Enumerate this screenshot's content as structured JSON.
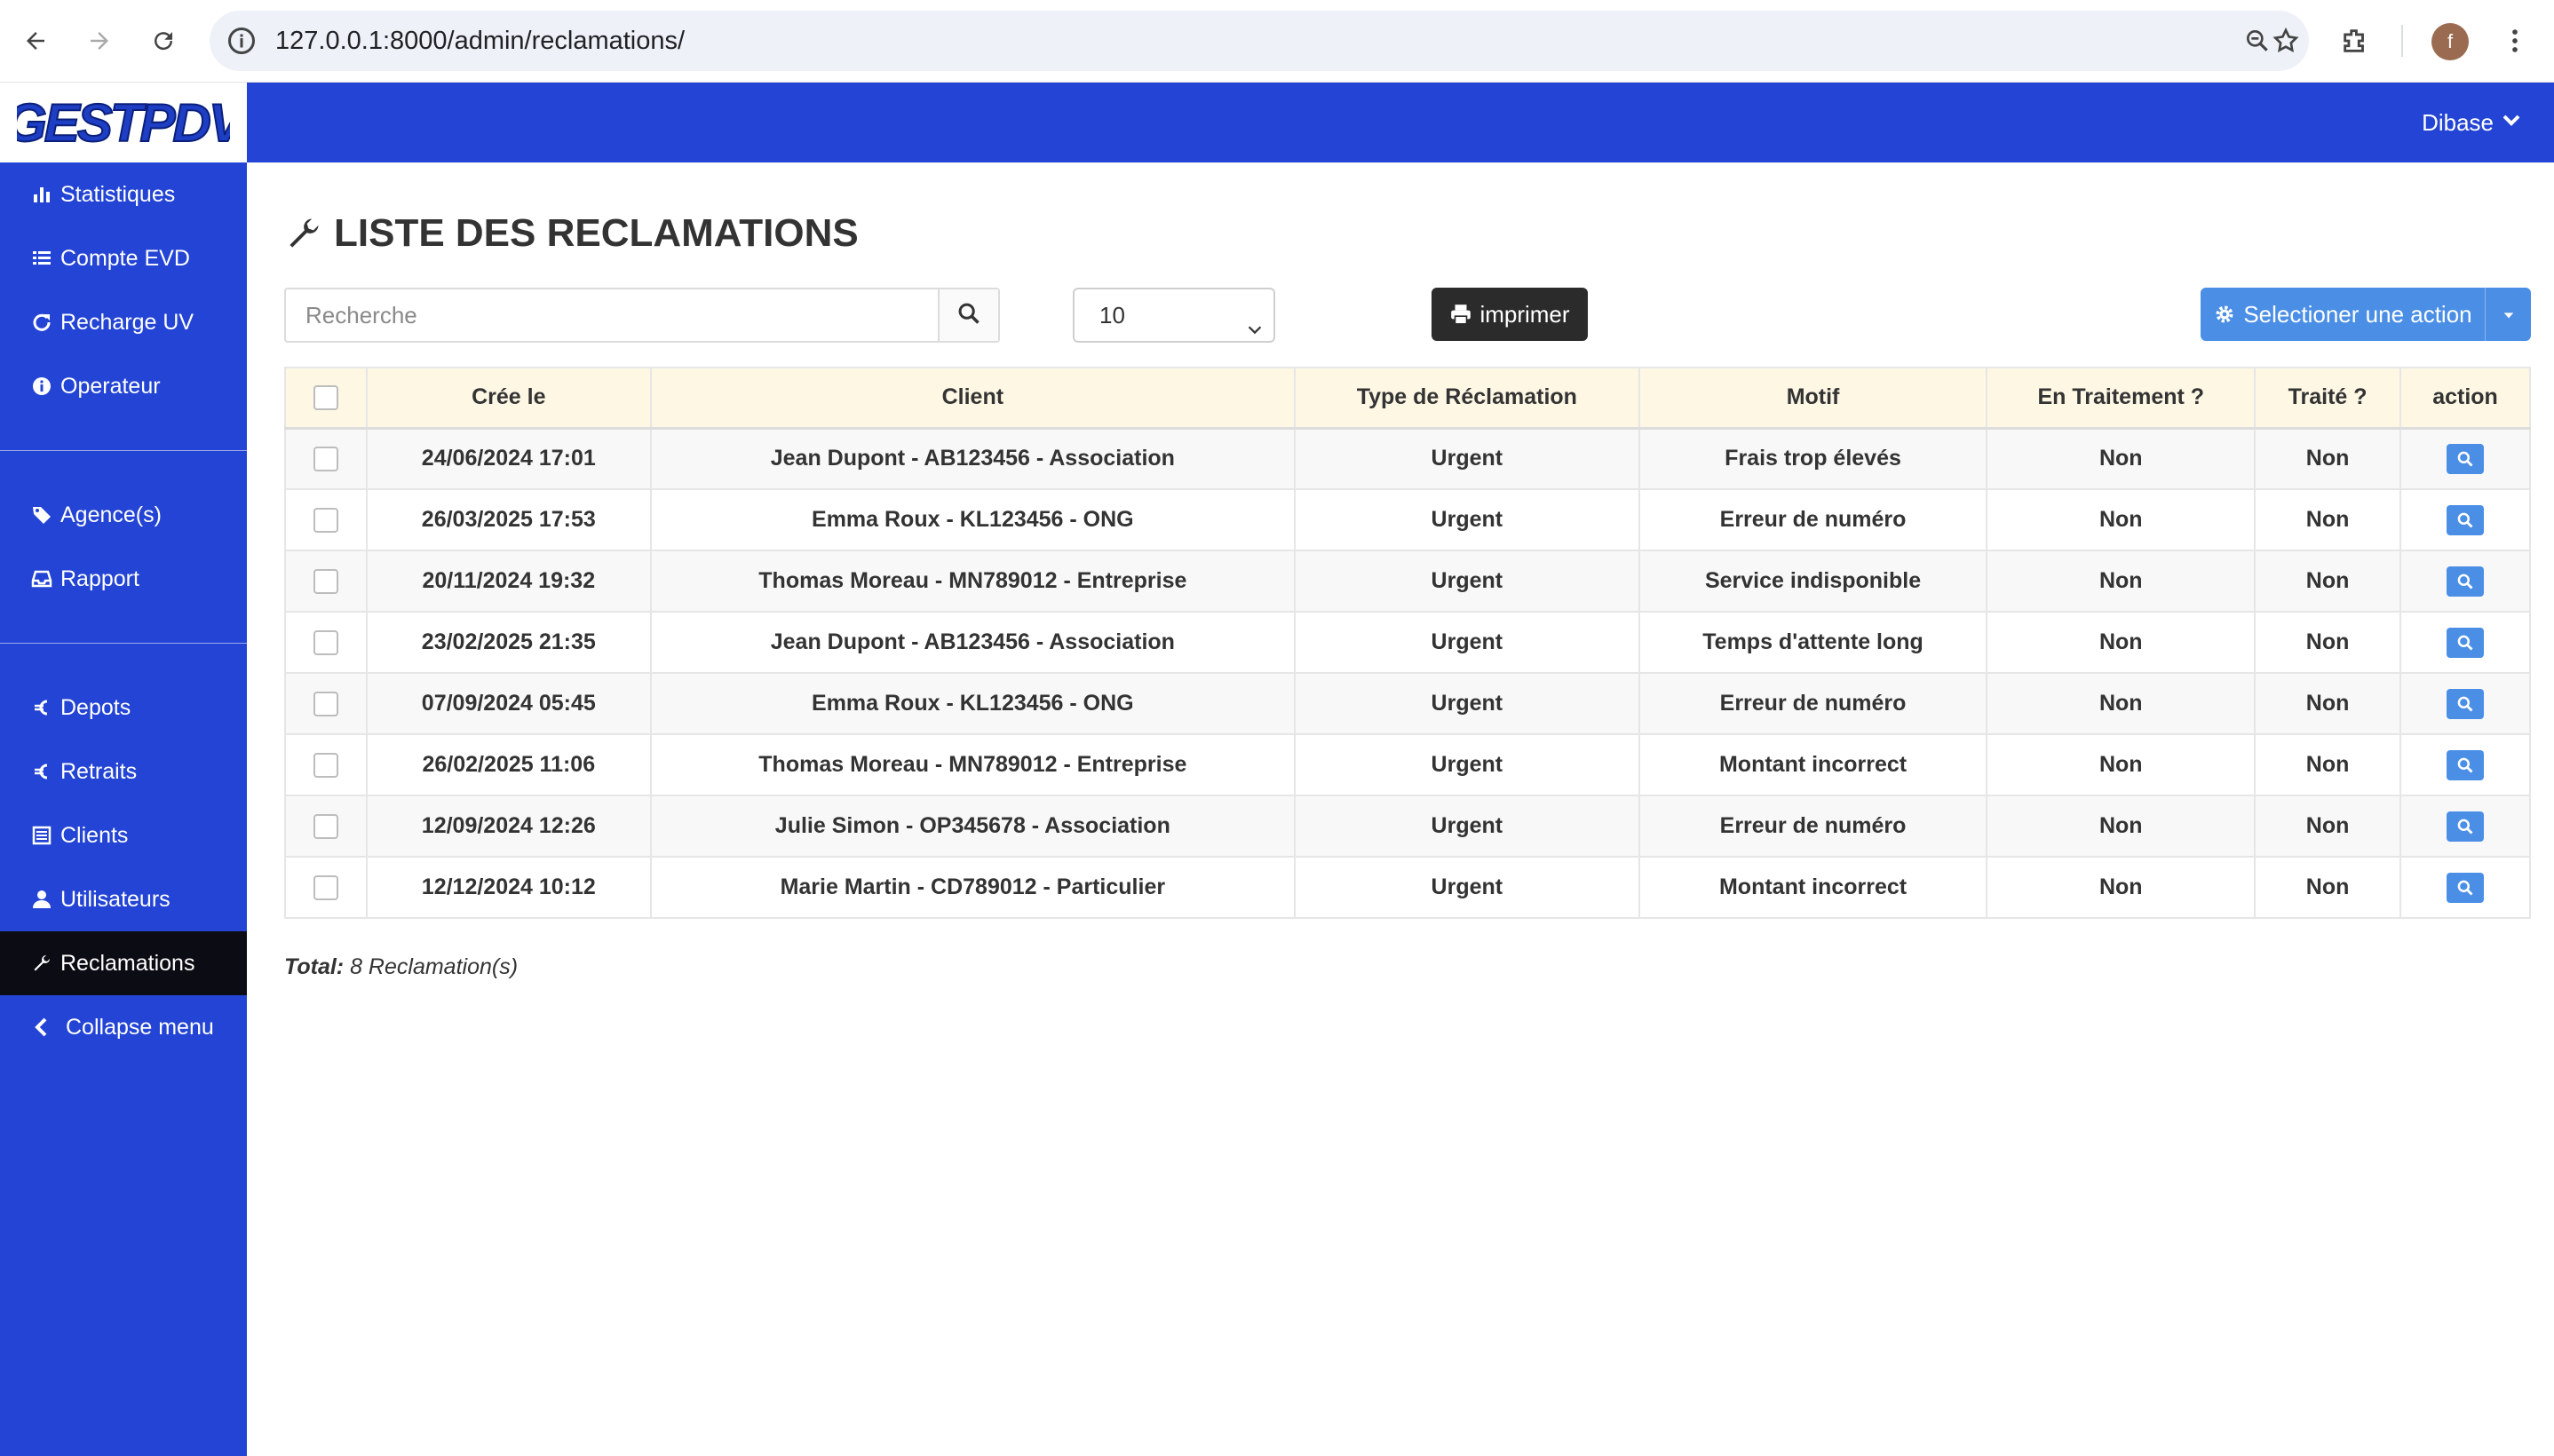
{
  "browser": {
    "url": "127.0.0.1:8000/admin/reclamations/",
    "profile_initial": "f"
  },
  "app": {
    "logo_text": "GESTPDV",
    "user_name": "Dibase"
  },
  "sidebar": {
    "items": [
      {
        "label": "Statistiques",
        "icon": "bar-chart-icon"
      },
      {
        "label": "Compte EVD",
        "icon": "list-icon"
      },
      {
        "label": "Recharge UV",
        "icon": "refresh-icon"
      },
      {
        "label": "Operateur",
        "icon": "info-icon"
      },
      {
        "label": "Agence(s)",
        "icon": "tag-icon"
      },
      {
        "label": "Rapport",
        "icon": "inbox-icon"
      },
      {
        "label": "Depots",
        "icon": "euro-icon"
      },
      {
        "label": "Retraits",
        "icon": "euro-icon"
      },
      {
        "label": "Clients",
        "icon": "list-alt-icon"
      },
      {
        "label": "Utilisateurs",
        "icon": "user-icon"
      },
      {
        "label": "Reclamations",
        "icon": "wrench-icon"
      },
      {
        "label": "Collapse menu",
        "icon": "chevron-left-icon"
      }
    ]
  },
  "main": {
    "title": "LISTE DES RECLAMATIONS",
    "search_placeholder": "Recherche",
    "page_size": "10",
    "print_label": "imprimer",
    "action_label": "Selectioner une action"
  },
  "table": {
    "headers": [
      "Crée le",
      "Client",
      "Type de Réclamation",
      "Motif",
      "En Traitement ?",
      "Traité ?",
      "action"
    ],
    "rows": [
      {
        "date": "24/06/2024 17:01",
        "client": "Jean Dupont - AB123456 - Association",
        "type": "Urgent",
        "motif": "Frais trop élevés",
        "en_traitement": "Non",
        "traite": "Non"
      },
      {
        "date": "26/03/2025 17:53",
        "client": "Emma Roux - KL123456 - ONG",
        "type": "Urgent",
        "motif": "Erreur de numéro",
        "en_traitement": "Non",
        "traite": "Non"
      },
      {
        "date": "20/11/2024 19:32",
        "client": "Thomas Moreau - MN789012 - Entreprise",
        "type": "Urgent",
        "motif": "Service indisponible",
        "en_traitement": "Non",
        "traite": "Non"
      },
      {
        "date": "23/02/2025 21:35",
        "client": "Jean Dupont - AB123456 - Association",
        "type": "Urgent",
        "motif": "Temps d'attente long",
        "en_traitement": "Non",
        "traite": "Non"
      },
      {
        "date": "07/09/2024 05:45",
        "client": "Emma Roux - KL123456 - ONG",
        "type": "Urgent",
        "motif": "Erreur de numéro",
        "en_traitement": "Non",
        "traite": "Non"
      },
      {
        "date": "26/02/2025 11:06",
        "client": "Thomas Moreau - MN789012 - Entreprise",
        "type": "Urgent",
        "motif": "Montant incorrect",
        "en_traitement": "Non",
        "traite": "Non"
      },
      {
        "date": "12/09/2024 12:26",
        "client": "Julie Simon - OP345678 - Association",
        "type": "Urgent",
        "motif": "Erreur de numéro",
        "en_traitement": "Non",
        "traite": "Non"
      },
      {
        "date": "12/12/2024 10:12",
        "client": "Marie Martin - CD789012 - Particulier",
        "type": "Urgent",
        "motif": "Montant incorrect",
        "en_traitement": "Non",
        "traite": "Non"
      }
    ]
  },
  "footer": {
    "total_label": "Total:",
    "total_value": "8 Reclamation(s)"
  },
  "colors": {
    "primary": "#2344d4",
    "active_item": "#0c0c14",
    "button_blue": "#4a8ee6",
    "header_bg": "#fdf7e4"
  }
}
